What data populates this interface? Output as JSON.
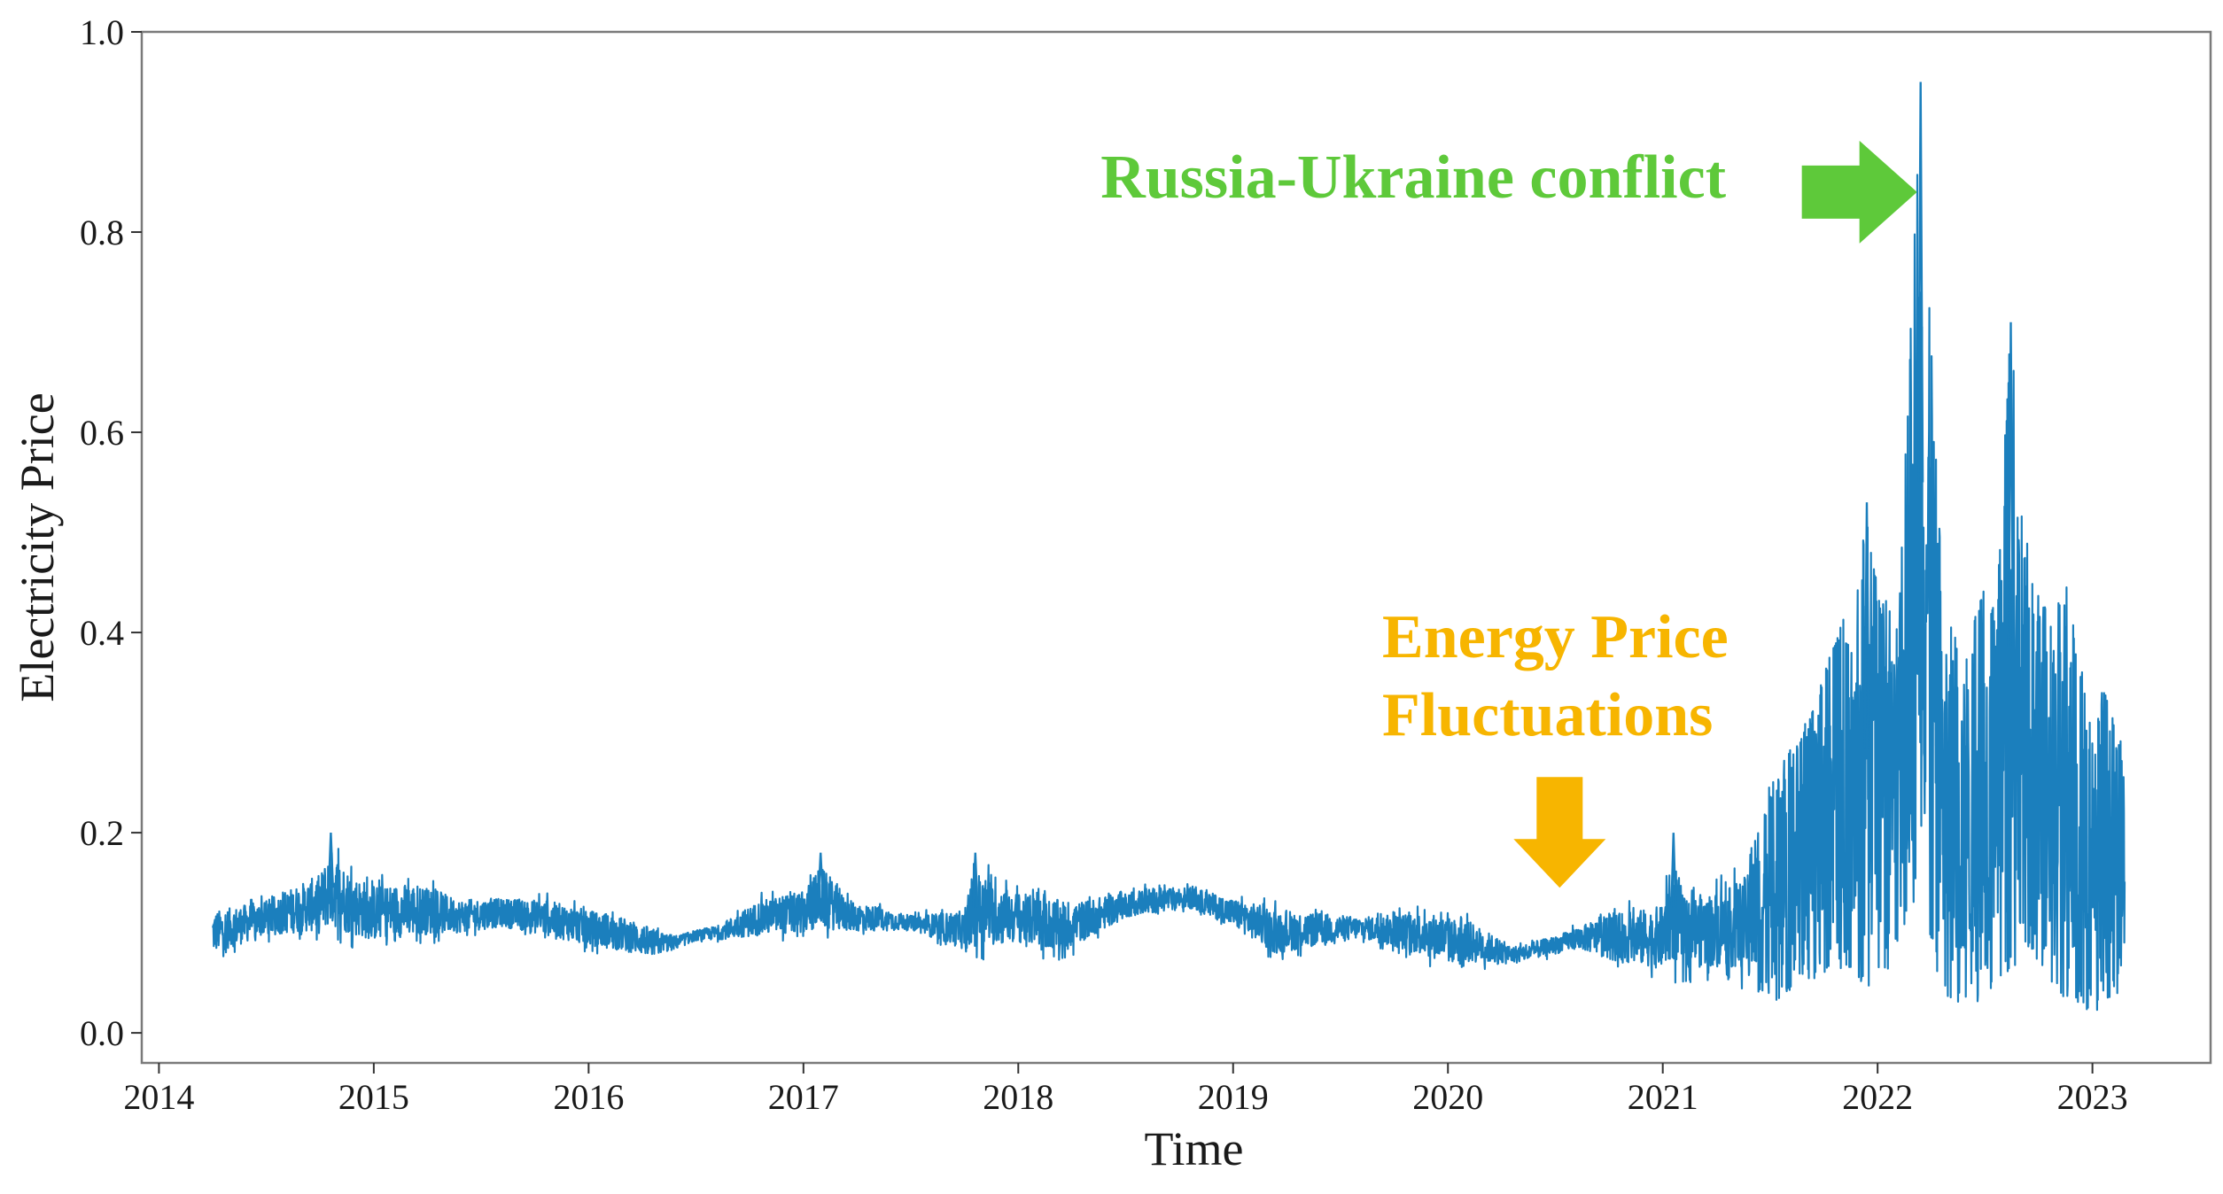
{
  "chart_data": {
    "type": "line",
    "title": "",
    "xlabel": "Time",
    "ylabel": "Electricity Price",
    "xlim": [
      2013.92,
      2023.55
    ],
    "ylim": [
      -0.03,
      1.0
    ],
    "x_ticks": [
      "2014",
      "2015",
      "2016",
      "2017",
      "2018",
      "2019",
      "2020",
      "2021",
      "2022",
      "2023"
    ],
    "x_tick_values": [
      2014,
      2015,
      2016,
      2017,
      2018,
      2019,
      2020,
      2021,
      2022,
      2023
    ],
    "y_ticks": [
      "0.0",
      "0.2",
      "0.4",
      "0.6",
      "0.8",
      "1.0"
    ],
    "y_tick_values": [
      0.0,
      0.2,
      0.4,
      0.6,
      0.8,
      1.0
    ],
    "grid": false,
    "line_color": "#1b7fbd",
    "series": [
      {
        "name": "",
        "x_start": 2014.25,
        "x_end": 2023.15,
        "upper_envelope": [
          [
            2014.25,
            0.13
          ],
          [
            2014.5,
            0.14
          ],
          [
            2014.75,
            0.17
          ],
          [
            2014.8,
            0.2
          ],
          [
            2014.9,
            0.17
          ],
          [
            2015.0,
            0.16
          ],
          [
            2015.2,
            0.16
          ],
          [
            2015.4,
            0.14
          ],
          [
            2015.6,
            0.14
          ],
          [
            2015.8,
            0.14
          ],
          [
            2016.0,
            0.13
          ],
          [
            2016.2,
            0.12
          ],
          [
            2016.4,
            0.1
          ],
          [
            2016.6,
            0.11
          ],
          [
            2016.8,
            0.14
          ],
          [
            2017.0,
            0.15
          ],
          [
            2017.08,
            0.18
          ],
          [
            2017.2,
            0.14
          ],
          [
            2017.5,
            0.12
          ],
          [
            2017.75,
            0.13
          ],
          [
            2017.8,
            0.18
          ],
          [
            2017.9,
            0.16
          ],
          [
            2018.0,
            0.15
          ],
          [
            2018.3,
            0.14
          ],
          [
            2018.6,
            0.15
          ],
          [
            2018.8,
            0.15
          ],
          [
            2019.0,
            0.14
          ],
          [
            2019.3,
            0.13
          ],
          [
            2019.6,
            0.12
          ],
          [
            2019.9,
            0.13
          ],
          [
            2020.1,
            0.12
          ],
          [
            2020.3,
            0.09
          ],
          [
            2020.5,
            0.1
          ],
          [
            2020.8,
            0.13
          ],
          [
            2021.0,
            0.14
          ],
          [
            2021.05,
            0.2
          ],
          [
            2021.1,
            0.15
          ],
          [
            2021.3,
            0.16
          ],
          [
            2021.4,
            0.18
          ],
          [
            2021.5,
            0.25
          ],
          [
            2021.7,
            0.33
          ],
          [
            2021.9,
            0.45
          ],
          [
            2021.95,
            0.53
          ],
          [
            2022.0,
            0.44
          ],
          [
            2022.1,
            0.42
          ],
          [
            2022.2,
            0.95
          ],
          [
            2022.3,
            0.45
          ],
          [
            2022.4,
            0.38
          ],
          [
            2022.5,
            0.45
          ],
          [
            2022.55,
            0.42
          ],
          [
            2022.62,
            0.71
          ],
          [
            2022.7,
            0.48
          ],
          [
            2022.8,
            0.42
          ],
          [
            2022.88,
            0.45
          ],
          [
            2023.0,
            0.3
          ],
          [
            2023.05,
            0.35
          ],
          [
            2023.15,
            0.29
          ]
        ],
        "lower_envelope": [
          [
            2014.25,
            0.07
          ],
          [
            2014.5,
            0.09
          ],
          [
            2014.8,
            0.09
          ],
          [
            2015.0,
            0.08
          ],
          [
            2015.3,
            0.09
          ],
          [
            2015.6,
            0.1
          ],
          [
            2016.0,
            0.08
          ],
          [
            2016.3,
            0.07
          ],
          [
            2016.5,
            0.09
          ],
          [
            2017.0,
            0.09
          ],
          [
            2017.5,
            0.1
          ],
          [
            2017.8,
            0.07
          ],
          [
            2018.0,
            0.08
          ],
          [
            2018.2,
            0.07
          ],
          [
            2018.5,
            0.11
          ],
          [
            2018.8,
            0.12
          ],
          [
            2019.0,
            0.1
          ],
          [
            2019.2,
            0.07
          ],
          [
            2019.6,
            0.09
          ],
          [
            2020.0,
            0.06
          ],
          [
            2020.3,
            0.065
          ],
          [
            2020.6,
            0.08
          ],
          [
            2020.8,
            0.06
          ],
          [
            2021.0,
            0.05
          ],
          [
            2021.3,
            0.05
          ],
          [
            2021.5,
            0.03
          ],
          [
            2021.8,
            0.06
          ],
          [
            2022.0,
            0.03
          ],
          [
            2022.2,
            0.15
          ],
          [
            2022.3,
            0.03
          ],
          [
            2022.5,
            0.03
          ],
          [
            2022.7,
            0.08
          ],
          [
            2022.85,
            0.03
          ],
          [
            2023.0,
            0.02
          ],
          [
            2023.15,
            0.04
          ]
        ]
      }
    ],
    "annotations": [
      {
        "name": "russia-ukraine",
        "text": "Russia-Ukraine conflict",
        "color": "#5ec93a",
        "arrow_direction": "right",
        "points_to": [
          2022.2,
          0.84
        ]
      },
      {
        "name": "energy-price",
        "lines": [
          "Energy Price",
          "Fluctuations"
        ],
        "color": "#f7b500",
        "arrow_direction": "down",
        "points_to": [
          2020.52,
          0.145
        ]
      }
    ]
  }
}
